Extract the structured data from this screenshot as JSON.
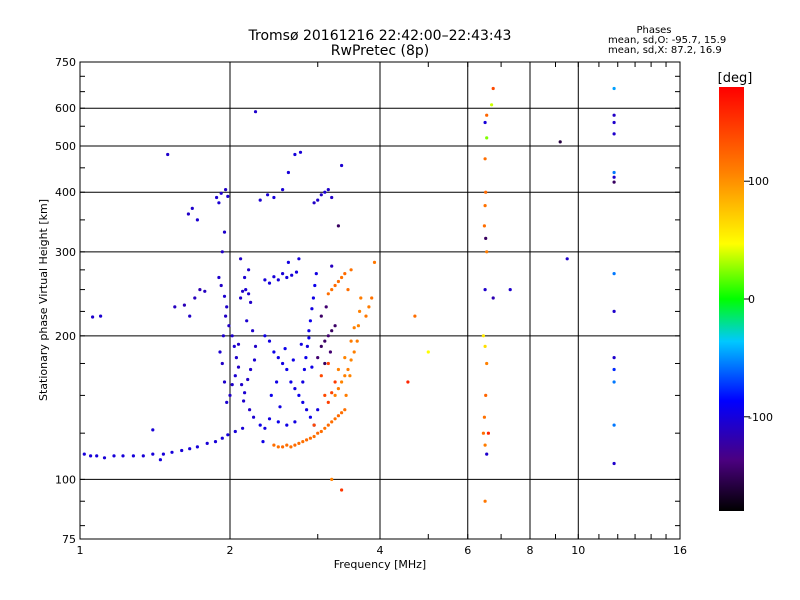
{
  "chart_data": {
    "type": "scatter",
    "title": "Tromsø 20161216 22:42:00–22:43:43",
    "subtitle": "RwPretec (8p)",
    "xlabel": "Frequency [MHz]",
    "ylabel": "Stationary phase Virtual Height [km]",
    "x_scale": "log",
    "y_scale": "log",
    "xlim": [
      1,
      16
    ],
    "ylim": [
      75,
      750
    ],
    "x_ticks": [
      "1",
      "2",
      "4",
      "6",
      "8",
      "10",
      "16"
    ],
    "x_tick_values": [
      1,
      2,
      4,
      6,
      8,
      10,
      16
    ],
    "y_ticks": [
      "75",
      "100",
      "200",
      "300",
      "400",
      "500",
      "600",
      "750"
    ],
    "y_tick_values": [
      75,
      100,
      200,
      300,
      400,
      500,
      600,
      750
    ],
    "grid": true,
    "stats": {
      "heading": "Phases",
      "line_o": "mean, sd,O: -95.7, 15.9",
      "line_x": "mean, sd,X:  87.2, 16.9"
    },
    "colorbar": {
      "label": "[deg]",
      "min": -180,
      "max": 180,
      "ticks": [
        "100",
        "0",
        "-100"
      ],
      "tick_values": [
        100,
        0,
        -100
      ]
    },
    "series_note": "",
    "points": [
      [
        1.02,
        113,
        -105
      ],
      [
        1.05,
        112,
        -105
      ],
      [
        1.08,
        112,
        -104
      ],
      [
        1.12,
        111,
        -106
      ],
      [
        1.17,
        112,
        -105
      ],
      [
        1.22,
        112,
        -105
      ],
      [
        1.28,
        112,
        -104
      ],
      [
        1.34,
        112,
        -106
      ],
      [
        1.4,
        113,
        -105
      ],
      [
        1.47,
        113,
        -105
      ],
      [
        1.53,
        114,
        -104
      ],
      [
        1.6,
        115,
        -106
      ],
      [
        1.66,
        116,
        -105
      ],
      [
        1.72,
        117,
        -104
      ],
      [
        1.8,
        119,
        -106
      ],
      [
        1.87,
        120,
        -105
      ],
      [
        1.93,
        122,
        -105
      ],
      [
        1.98,
        124,
        -104
      ],
      [
        2.05,
        126,
        -105
      ],
      [
        2.12,
        128,
        -106
      ],
      [
        1.06,
        219,
        -110
      ],
      [
        1.1,
        220,
        -108
      ],
      [
        1.4,
        127,
        -106
      ],
      [
        1.45,
        110,
        -104
      ],
      [
        1.55,
        230,
        -115
      ],
      [
        1.62,
        232,
        -118
      ],
      [
        1.66,
        220,
        -112
      ],
      [
        1.7,
        240,
        -116
      ],
      [
        1.74,
        250,
        -120
      ],
      [
        1.78,
        248,
        -114
      ],
      [
        1.65,
        360,
        -112
      ],
      [
        1.68,
        370,
        -110
      ],
      [
        1.72,
        350,
        -108
      ],
      [
        1.5,
        480,
        -110
      ],
      [
        1.88,
        390,
        -108
      ],
      [
        1.92,
        398,
        -110
      ],
      [
        1.9,
        380,
        -107
      ],
      [
        1.96,
        405,
        -112
      ],
      [
        1.98,
        392,
        -108
      ],
      [
        1.95,
        330,
        -110
      ],
      [
        1.93,
        300,
        -112
      ],
      [
        1.9,
        265,
        -110
      ],
      [
        1.92,
        255,
        -112
      ],
      [
        1.95,
        242,
        -108
      ],
      [
        1.97,
        230,
        -110
      ],
      [
        1.99,
        210,
        -112
      ],
      [
        2.02,
        200,
        -110
      ],
      [
        2.04,
        190,
        -108
      ],
      [
        2.06,
        180,
        -110
      ],
      [
        2.08,
        172,
        -112
      ],
      [
        2.05,
        165,
        -108
      ],
      [
        2.02,
        158,
        -110
      ],
      [
        2.0,
        150,
        -112
      ],
      [
        1.97,
        145,
        -108
      ],
      [
        1.95,
        160,
        -110
      ],
      [
        1.93,
        175,
        -112
      ],
      [
        1.91,
        185,
        -108
      ],
      [
        1.94,
        200,
        -110
      ],
      [
        1.96,
        220,
        -112
      ],
      [
        2.1,
        240,
        -110
      ],
      [
        2.12,
        248,
        -112
      ],
      [
        2.15,
        250,
        -108
      ],
      [
        2.18,
        245,
        -110
      ],
      [
        2.2,
        235,
        -112
      ],
      [
        2.16,
        215,
        -108
      ],
      [
        2.22,
        205,
        -110
      ],
      [
        2.25,
        190,
        -112
      ],
      [
        2.24,
        178,
        -108
      ],
      [
        2.2,
        170,
        -110
      ],
      [
        2.17,
        162,
        -112
      ],
      [
        2.14,
        152,
        -108
      ],
      [
        2.13,
        146,
        -110
      ],
      [
        2.19,
        140,
        -112
      ],
      [
        2.23,
        135,
        -108
      ],
      [
        2.11,
        158,
        -110
      ],
      [
        2.08,
        192,
        -112
      ],
      [
        2.14,
        265,
        -108
      ],
      [
        2.18,
        275,
        -110
      ],
      [
        2.1,
        290,
        -112
      ],
      [
        2.35,
        262,
        -105
      ],
      [
        2.4,
        258,
        -103
      ],
      [
        2.45,
        266,
        -105
      ],
      [
        2.5,
        262,
        -104
      ],
      [
        2.55,
        270,
        -106
      ],
      [
        2.6,
        265,
        -103
      ],
      [
        2.66,
        268,
        -105
      ],
      [
        2.72,
        272,
        -104
      ],
      [
        2.62,
        285,
        -102
      ],
      [
        2.75,
        290,
        -104
      ],
      [
        2.3,
        385,
        -108
      ],
      [
        2.38,
        395,
        -106
      ],
      [
        2.45,
        390,
        -104
      ],
      [
        2.55,
        405,
        -106
      ],
      [
        2.62,
        440,
        -105
      ],
      [
        2.7,
        480,
        -104
      ],
      [
        2.77,
        485,
        -106
      ],
      [
        2.25,
        590,
        -110
      ],
      [
        2.95,
        380,
        -112
      ],
      [
        3.0,
        385,
        -110
      ],
      [
        3.05,
        395,
        -112
      ],
      [
        3.1,
        400,
        -108
      ],
      [
        3.15,
        405,
        -110
      ],
      [
        3.2,
        390,
        -112
      ],
      [
        2.35,
        200,
        -100
      ],
      [
        2.4,
        195,
        -102
      ],
      [
        2.45,
        185,
        -98
      ],
      [
        2.5,
        180,
        -100
      ],
      [
        2.55,
        175,
        -102
      ],
      [
        2.6,
        170,
        -98
      ],
      [
        2.65,
        160,
        -100
      ],
      [
        2.7,
        155,
        -102
      ],
      [
        2.75,
        150,
        -98
      ],
      [
        2.8,
        145,
        -100
      ],
      [
        2.85,
        140,
        -102
      ],
      [
        2.9,
        135,
        -98
      ],
      [
        2.95,
        130,
        -100
      ],
      [
        3.0,
        140,
        -102
      ],
      [
        2.42,
        150,
        -98
      ],
      [
        2.48,
        160,
        -100
      ],
      [
        2.52,
        142,
        -102
      ],
      [
        2.58,
        188,
        -98
      ],
      [
        2.68,
        178,
        -100
      ],
      [
        2.78,
        192,
        -102
      ],
      [
        2.88,
        198,
        -98
      ],
      [
        2.92,
        172,
        -100
      ],
      [
        2.4,
        134,
        -102
      ],
      [
        2.5,
        132,
        -98
      ],
      [
        2.6,
        130,
        -100
      ],
      [
        2.7,
        132,
        -102
      ],
      [
        2.3,
        130,
        -100
      ],
      [
        2.35,
        128,
        -102
      ],
      [
        2.33,
        120,
        -100
      ],
      [
        2.45,
        118,
        120
      ],
      [
        2.5,
        117,
        118
      ],
      [
        2.55,
        117,
        122
      ],
      [
        2.6,
        118,
        120
      ],
      [
        2.65,
        117,
        118
      ],
      [
        2.7,
        118,
        122
      ],
      [
        2.75,
        119,
        120
      ],
      [
        2.8,
        120,
        118
      ],
      [
        2.85,
        121,
        122
      ],
      [
        2.9,
        122,
        120
      ],
      [
        2.95,
        123,
        118
      ],
      [
        3.0,
        125,
        122
      ],
      [
        3.05,
        126,
        120
      ],
      [
        3.1,
        128,
        118
      ],
      [
        3.15,
        130,
        122
      ],
      [
        3.2,
        132,
        120
      ],
      [
        3.25,
        134,
        118
      ],
      [
        3.3,
        136,
        122
      ],
      [
        3.35,
        138,
        120
      ],
      [
        3.4,
        140,
        118
      ],
      [
        3.25,
        150,
        110
      ],
      [
        3.3,
        155,
        112
      ],
      [
        3.35,
        160,
        108
      ],
      [
        3.4,
        165,
        110
      ],
      [
        3.45,
        170,
        112
      ],
      [
        3.5,
        178,
        108
      ],
      [
        3.55,
        185,
        110
      ],
      [
        3.6,
        195,
        112
      ],
      [
        3.62,
        210,
        108
      ],
      [
        3.64,
        225,
        110
      ],
      [
        3.66,
        240,
        112
      ],
      [
        3.3,
        170,
        110
      ],
      [
        3.4,
        180,
        108
      ],
      [
        3.5,
        195,
        112
      ],
      [
        3.55,
        208,
        110
      ],
      [
        3.48,
        165,
        108
      ],
      [
        3.42,
        150,
        112
      ],
      [
        3.1,
        150,
        140
      ],
      [
        3.15,
        145,
        145
      ],
      [
        3.2,
        152,
        142
      ],
      [
        3.25,
        160,
        148
      ],
      [
        3.05,
        165,
        140
      ],
      [
        3.15,
        175,
        144
      ],
      [
        3.0,
        180,
        -145
      ],
      [
        3.05,
        190,
        -150
      ],
      [
        3.1,
        195,
        -148
      ],
      [
        3.15,
        200,
        -145
      ],
      [
        3.2,
        205,
        -150
      ],
      [
        3.25,
        210,
        -148
      ],
      [
        3.18,
        185,
        -145
      ],
      [
        3.1,
        175,
        -150
      ],
      [
        3.05,
        220,
        -148
      ],
      [
        3.12,
        230,
        -145
      ],
      [
        3.15,
        245,
        120
      ],
      [
        3.2,
        250,
        118
      ],
      [
        3.25,
        255,
        122
      ],
      [
        3.3,
        260,
        120
      ],
      [
        3.35,
        265,
        118
      ],
      [
        3.4,
        270,
        122
      ],
      [
        3.45,
        250,
        120
      ],
      [
        3.5,
        275,
        118
      ],
      [
        3.75,
        220,
        115
      ],
      [
        3.8,
        230,
        112
      ],
      [
        3.85,
        240,
        118
      ],
      [
        3.9,
        285,
        115
      ],
      [
        2.8,
        160,
        -102
      ],
      [
        2.82,
        170,
        -100
      ],
      [
        2.84,
        180,
        -98
      ],
      [
        2.86,
        190,
        -102
      ],
      [
        2.88,
        205,
        -100
      ],
      [
        2.9,
        215,
        -98
      ],
      [
        2.92,
        228,
        -102
      ],
      [
        2.94,
        240,
        -100
      ],
      [
        2.96,
        255,
        -98
      ],
      [
        2.98,
        270,
        -102
      ],
      [
        3.3,
        340,
        -150
      ],
      [
        3.35,
        455,
        -108
      ],
      [
        3.2,
        280,
        -115
      ],
      [
        4.55,
        160,
        160
      ],
      [
        4.7,
        220,
        120
      ],
      [
        5.0,
        185,
        50
      ],
      [
        3.2,
        100,
        110
      ],
      [
        3.35,
        95,
        150
      ],
      [
        2.95,
        130,
        140
      ],
      [
        6.45,
        125,
        120
      ],
      [
        6.5,
        118,
        112
      ],
      [
        6.55,
        113,
        -110
      ],
      [
        6.48,
        135,
        118
      ],
      [
        6.52,
        150,
        125
      ],
      [
        6.55,
        175,
        110
      ],
      [
        6.5,
        190,
        65
      ],
      [
        6.45,
        200,
        60
      ],
      [
        6.5,
        250,
        -110
      ],
      [
        6.55,
        300,
        112
      ],
      [
        6.52,
        320,
        -150
      ],
      [
        6.48,
        340,
        120
      ],
      [
        6.5,
        375,
        118
      ],
      [
        6.52,
        400,
        122
      ],
      [
        6.5,
        470,
        120
      ],
      [
        6.55,
        520,
        25
      ],
      [
        6.5,
        560,
        -105
      ],
      [
        6.55,
        580,
        125
      ],
      [
        6.7,
        610,
        40
      ],
      [
        6.75,
        660,
        140
      ],
      [
        6.6,
        125,
        160
      ],
      [
        6.75,
        240,
        -120
      ],
      [
        7.3,
        250,
        -110
      ],
      [
        6.5,
        90,
        115
      ],
      [
        9.2,
        510,
        -160
      ],
      [
        9.5,
        290,
        -110
      ],
      [
        11.8,
        420,
        -150
      ],
      [
        11.8,
        430,
        -110
      ],
      [
        11.8,
        440,
        -60
      ],
      [
        11.8,
        560,
        -110
      ],
      [
        11.8,
        580,
        -112
      ],
      [
        11.8,
        530,
        -110
      ],
      [
        11.8,
        270,
        -60
      ],
      [
        11.8,
        225,
        -110
      ],
      [
        11.8,
        180,
        -110
      ],
      [
        11.8,
        170,
        -80
      ],
      [
        11.8,
        160,
        -60
      ],
      [
        11.8,
        130,
        -60
      ],
      [
        11.8,
        108,
        -110
      ],
      [
        11.8,
        660,
        -50
      ]
    ]
  }
}
